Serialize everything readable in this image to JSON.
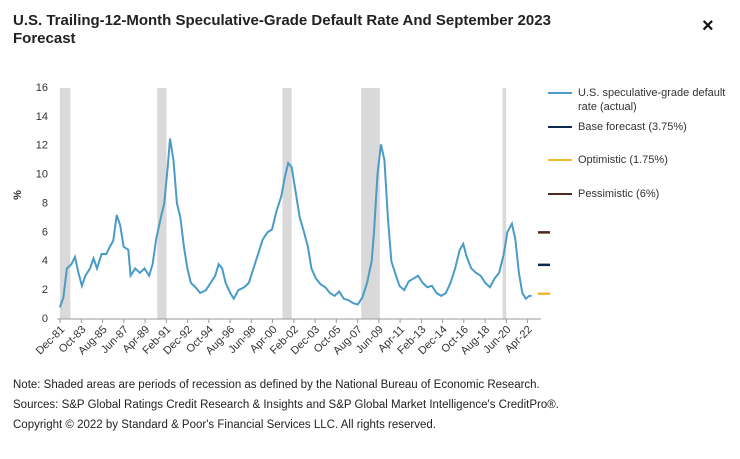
{
  "chart_data": {
    "type": "line",
    "title": "U.S. Trailing-12-Month Speculative-Grade Default Rate And September 2023 Forecast",
    "close_label": "×",
    "y_label": "%",
    "xlim": [
      1981.65,
      2024.1
    ],
    "ylim": [
      0,
      16
    ],
    "yticks": [
      0,
      2,
      4,
      6,
      8,
      10,
      12,
      14,
      16
    ],
    "xticks": [
      {
        "value": 1981.917,
        "label": "Dec-81"
      },
      {
        "value": 1983.75,
        "label": "Oct-83"
      },
      {
        "value": 1985.583,
        "label": "Aug-85"
      },
      {
        "value": 1987.417,
        "label": "Jun-87"
      },
      {
        "value": 1989.25,
        "label": "Apr-89"
      },
      {
        "value": 1991.083,
        "label": "Feb-91"
      },
      {
        "value": 1992.917,
        "label": "Dec-92"
      },
      {
        "value": 1994.75,
        "label": "Oct-94"
      },
      {
        "value": 1996.583,
        "label": "Aug-96"
      },
      {
        "value": 1998.417,
        "label": "Jun-98"
      },
      {
        "value": 2000.25,
        "label": "Apr-00"
      },
      {
        "value": 2002.083,
        "label": "Feb-02"
      },
      {
        "value": 2003.917,
        "label": "Dec-03"
      },
      {
        "value": 2005.75,
        "label": "Oct-05"
      },
      {
        "value": 2007.583,
        "label": "Aug-07"
      },
      {
        "value": 2009.417,
        "label": "Jun-09"
      },
      {
        "value": 2011.25,
        "label": "Apr-11"
      },
      {
        "value": 2013.083,
        "label": "Feb-13"
      },
      {
        "value": 2014.917,
        "label": "Dec-14"
      },
      {
        "value": 2016.75,
        "label": "Oct-16"
      },
      {
        "value": 2018.583,
        "label": "Aug-18"
      },
      {
        "value": 2020.417,
        "label": "Jun-20"
      },
      {
        "value": 2022.25,
        "label": "Apr-22"
      }
    ],
    "grid": false,
    "legend": "right",
    "recessions": [
      [
        1981.9,
        1982.8
      ],
      [
        1990.3,
        1991.1
      ],
      [
        2001.1,
        2001.9
      ],
      [
        2007.9,
        2009.5
      ],
      [
        2020.1,
        2020.4
      ]
    ],
    "recession_color": "#d9d9d9",
    "series": [
      {
        "name": "U.S. speculative-grade default rate (actual)",
        "color": "#4a9bc7",
        "style": "line",
        "x": [
          1981.9,
          1982.2,
          1982.5,
          1982.9,
          1983.2,
          1983.5,
          1983.8,
          1984.1,
          1984.5,
          1984.8,
          1985.1,
          1985.5,
          1985.9,
          1986.2,
          1986.5,
          1986.8,
          1987.1,
          1987.4,
          1987.8,
          1988.0,
          1988.4,
          1988.8,
          1989.2,
          1989.6,
          1989.9,
          1990.2,
          1990.6,
          1990.9,
          1991.2,
          1991.4,
          1991.7,
          1992.0,
          1992.3,
          1992.6,
          1992.9,
          1993.2,
          1993.6,
          1994.0,
          1994.5,
          1994.9,
          1995.3,
          1995.6,
          1995.9,
          1996.2,
          1996.6,
          1996.9,
          1997.3,
          1997.8,
          1998.2,
          1998.6,
          1999.0,
          1999.4,
          1999.8,
          2000.2,
          2000.6,
          2001.0,
          2001.3,
          2001.6,
          2001.9,
          2002.2,
          2002.6,
          2002.9,
          2003.3,
          2003.6,
          2004.0,
          2004.4,
          2004.8,
          2005.2,
          2005.6,
          2006.0,
          2006.4,
          2006.8,
          2007.2,
          2007.6,
          2008.0,
          2008.4,
          2008.8,
          2009.0,
          2009.3,
          2009.6,
          2009.9,
          2010.2,
          2010.5,
          2010.9,
          2011.2,
          2011.6,
          2012.0,
          2012.4,
          2012.8,
          2013.2,
          2013.6,
          2014.0,
          2014.4,
          2014.8,
          2015.2,
          2015.6,
          2016.0,
          2016.4,
          2016.7,
          2017.0,
          2017.4,
          2017.8,
          2018.2,
          2018.6,
          2019.0,
          2019.4,
          2019.8,
          2020.2,
          2020.5,
          2020.9,
          2021.2,
          2021.5,
          2021.8,
          2022.1,
          2022.4,
          2022.6
        ],
        "values": [
          0.8,
          1.5,
          3.5,
          3.8,
          4.3,
          3.2,
          2.3,
          3.0,
          3.5,
          4.2,
          3.5,
          4.5,
          4.5,
          5.0,
          5.4,
          7.2,
          6.5,
          5.0,
          4.8,
          3.0,
          3.5,
          3.2,
          3.5,
          3.0,
          3.8,
          5.5,
          7.0,
          8.0,
          10.5,
          12.5,
          11.0,
          8.0,
          7.0,
          5.0,
          3.5,
          2.5,
          2.2,
          1.8,
          2.0,
          2.5,
          3.0,
          3.8,
          3.5,
          2.5,
          1.8,
          1.4,
          2.0,
          2.2,
          2.5,
          3.5,
          4.5,
          5.5,
          6.0,
          6.2,
          7.5,
          8.5,
          9.8,
          10.8,
          10.5,
          9.0,
          7.0,
          6.2,
          5.0,
          3.5,
          2.8,
          2.4,
          2.2,
          1.8,
          1.6,
          1.9,
          1.4,
          1.3,
          1.1,
          1.0,
          1.5,
          2.5,
          4.0,
          6.0,
          10.0,
          12.1,
          11.0,
          7.0,
          4.0,
          3.0,
          2.3,
          2.0,
          2.6,
          2.8,
          3.0,
          2.5,
          2.2,
          2.3,
          1.8,
          1.6,
          1.8,
          2.5,
          3.5,
          4.8,
          5.2,
          4.3,
          3.5,
          3.2,
          3.0,
          2.5,
          2.2,
          2.8,
          3.2,
          4.5,
          6.0,
          6.6,
          5.5,
          3.2,
          1.8,
          1.4,
          1.6,
          1.6
        ]
      },
      {
        "name": "Base forecast (3.75%)",
        "color": "#0e2b4e",
        "style": "dash",
        "x": [
          2023.67
        ],
        "values": [
          3.75
        ]
      },
      {
        "name": "Optimistic (1.75%)",
        "color": "#f5b731",
        "style": "dash",
        "x": [
          2023.67
        ],
        "values": [
          1.75
        ]
      },
      {
        "name": "Pessimistic (6%)",
        "color": "#4b2b1f",
        "style": "dash",
        "x": [
          2023.67
        ],
        "values": [
          6
        ]
      }
    ],
    "notes": [
      "Note: Shaded areas are periods of recession as defined by the National Bureau of Economic Research.",
      "Sources: S&P Global Ratings Credit Research & Insights and S&P Global Market Intelligence's CreditPro®.",
      "Copyright © 2022 by Standard & Poor's Financial Services LLC. All rights reserved."
    ]
  }
}
